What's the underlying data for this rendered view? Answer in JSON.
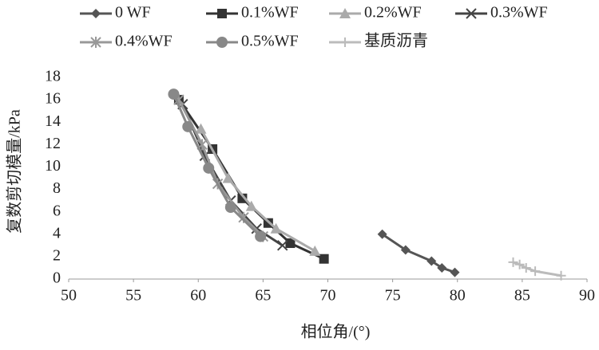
{
  "chart_data": {
    "type": "line",
    "x_label": "相位角/(°)",
    "y_label": "复数剪切模量/kPa",
    "xlim": [
      50,
      90
    ],
    "xticks": [
      50,
      55,
      60,
      65,
      70,
      75,
      80,
      85,
      90
    ],
    "ylim": [
      0,
      18
    ],
    "yticks": [
      0,
      2,
      4,
      6,
      8,
      10,
      12,
      14,
      16,
      18
    ],
    "grid": false,
    "legend": "top",
    "series": [
      {
        "name": "0 WF",
        "color": "#555555",
        "marker": "diamond",
        "x": [
          74.2,
          76,
          78,
          78.8,
          79.8
        ],
        "values": [
          4.0,
          2.6,
          1.6,
          1.0,
          0.6
        ]
      },
      {
        "name": "0.1%WF",
        "color": "#333333",
        "marker": "square",
        "x": [
          58.5,
          61.1,
          63.4,
          65.4,
          67.1,
          69.7
        ],
        "values": [
          16.0,
          11.6,
          7.2,
          5.0,
          3.2,
          1.8
        ]
      },
      {
        "name": "0.2%WF",
        "color": "#aaaaaa",
        "marker": "triangle",
        "x": [
          60.2,
          62.3,
          64.1,
          66,
          69
        ],
        "values": [
          13.4,
          9.0,
          6.5,
          4.5,
          2.5
        ]
      },
      {
        "name": "0.3%WF",
        "color": "#444444",
        "marker": "x",
        "x": [
          58.8,
          60.5,
          62.5,
          64.5,
          66.5
        ],
        "values": [
          15.6,
          11,
          7,
          4.5,
          3.0
        ]
      },
      {
        "name": "0.4%WF",
        "color": "#999999",
        "marker": "star",
        "x": [
          58.5,
          60.3,
          61.5,
          63.5,
          65
        ],
        "values": [
          16,
          12,
          8.5,
          5.5,
          3.8
        ]
      },
      {
        "name": "0.5%WF",
        "color": "#888888",
        "marker": "circle",
        "x": [
          58.1,
          59.2,
          60.8,
          62.5,
          64.8
        ],
        "values": [
          16.5,
          13.6,
          9.9,
          6.4,
          3.8
        ]
      },
      {
        "name": "基质沥青",
        "color": "#bbbbbb",
        "marker": "plus",
        "x": [
          84.3,
          84.8,
          85.3,
          86,
          88
        ],
        "values": [
          1.5,
          1.3,
          1.0,
          0.7,
          0.3
        ]
      }
    ]
  }
}
